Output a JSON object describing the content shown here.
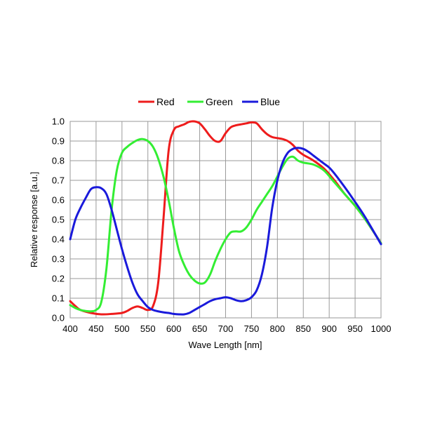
{
  "chart_data": {
    "type": "line",
    "title": "",
    "xlabel": "Wave Length [nm]",
    "ylabel": "Relative response [a.u.]",
    "xlim": [
      400,
      1000
    ],
    "ylim": [
      0,
      1.0
    ],
    "x_ticks": [
      400,
      450,
      500,
      550,
      600,
      650,
      700,
      750,
      800,
      850,
      900,
      950,
      1000
    ],
    "y_ticks": [
      0.0,
      0.1,
      0.2,
      0.3,
      0.4,
      0.5,
      0.6,
      0.7,
      0.8,
      0.9,
      1.0
    ],
    "x_tick_labels": [
      "400",
      "450",
      "500",
      "550",
      "600",
      "650",
      "700",
      "750",
      "800",
      "850",
      "900",
      "950",
      "1000"
    ],
    "y_tick_labels": [
      "0.0",
      "0.1",
      "0.2",
      "0.3",
      "0.4",
      "0.5",
      "0.6",
      "0.7",
      "0.8",
      "0.9",
      "1.0"
    ],
    "grid": true,
    "legend_position": "top",
    "series": [
      {
        "name": "Red",
        "color": "#ee1c1c",
        "points": [
          [
            400,
            0.085
          ],
          [
            410,
            0.06
          ],
          [
            420,
            0.04
          ],
          [
            440,
            0.025
          ],
          [
            460,
            0.018
          ],
          [
            480,
            0.02
          ],
          [
            500,
            0.025
          ],
          [
            510,
            0.035
          ],
          [
            520,
            0.05
          ],
          [
            530,
            0.058
          ],
          [
            540,
            0.05
          ],
          [
            550,
            0.04
          ],
          [
            560,
            0.06
          ],
          [
            570,
            0.18
          ],
          [
            580,
            0.5
          ],
          [
            590,
            0.85
          ],
          [
            600,
            0.955
          ],
          [
            610,
            0.975
          ],
          [
            620,
            0.985
          ],
          [
            630,
            0.998
          ],
          [
            640,
            1.0
          ],
          [
            650,
            0.99
          ],
          [
            660,
            0.96
          ],
          [
            670,
            0.925
          ],
          [
            680,
            0.9
          ],
          [
            690,
            0.9
          ],
          [
            700,
            0.94
          ],
          [
            710,
            0.97
          ],
          [
            720,
            0.98
          ],
          [
            730,
            0.985
          ],
          [
            740,
            0.99
          ],
          [
            750,
            0.995
          ],
          [
            760,
            0.99
          ],
          [
            770,
            0.96
          ],
          [
            780,
            0.935
          ],
          [
            790,
            0.92
          ],
          [
            800,
            0.915
          ],
          [
            810,
            0.91
          ],
          [
            820,
            0.9
          ],
          [
            830,
            0.88
          ],
          [
            840,
            0.85
          ],
          [
            850,
            0.83
          ],
          [
            870,
            0.8
          ],
          [
            890,
            0.76
          ],
          [
            910,
            0.7
          ],
          [
            930,
            0.63
          ],
          [
            950,
            0.57
          ],
          [
            970,
            0.5
          ],
          [
            1000,
            0.38
          ]
        ]
      },
      {
        "name": "Green",
        "color": "#33ee33",
        "points": [
          [
            400,
            0.065
          ],
          [
            410,
            0.05
          ],
          [
            420,
            0.04
          ],
          [
            430,
            0.035
          ],
          [
            440,
            0.033
          ],
          [
            450,
            0.04
          ],
          [
            460,
            0.08
          ],
          [
            470,
            0.25
          ],
          [
            480,
            0.55
          ],
          [
            490,
            0.75
          ],
          [
            500,
            0.84
          ],
          [
            510,
            0.87
          ],
          [
            520,
            0.89
          ],
          [
            530,
            0.905
          ],
          [
            540,
            0.91
          ],
          [
            550,
            0.9
          ],
          [
            560,
            0.87
          ],
          [
            570,
            0.81
          ],
          [
            580,
            0.72
          ],
          [
            590,
            0.6
          ],
          [
            600,
            0.46
          ],
          [
            610,
            0.34
          ],
          [
            620,
            0.27
          ],
          [
            630,
            0.22
          ],
          [
            640,
            0.19
          ],
          [
            650,
            0.175
          ],
          [
            660,
            0.18
          ],
          [
            670,
            0.22
          ],
          [
            680,
            0.29
          ],
          [
            690,
            0.35
          ],
          [
            700,
            0.4
          ],
          [
            710,
            0.435
          ],
          [
            720,
            0.44
          ],
          [
            730,
            0.44
          ],
          [
            740,
            0.46
          ],
          [
            750,
            0.5
          ],
          [
            760,
            0.55
          ],
          [
            770,
            0.59
          ],
          [
            780,
            0.63
          ],
          [
            790,
            0.67
          ],
          [
            800,
            0.72
          ],
          [
            810,
            0.77
          ],
          [
            820,
            0.81
          ],
          [
            830,
            0.82
          ],
          [
            840,
            0.8
          ],
          [
            850,
            0.79
          ],
          [
            870,
            0.78
          ],
          [
            890,
            0.75
          ],
          [
            910,
            0.69
          ],
          [
            930,
            0.63
          ],
          [
            950,
            0.57
          ],
          [
            970,
            0.5
          ],
          [
            1000,
            0.38
          ]
        ]
      },
      {
        "name": "Blue",
        "color": "#1a1adb",
        "points": [
          [
            400,
            0.4
          ],
          [
            410,
            0.5
          ],
          [
            420,
            0.56
          ],
          [
            430,
            0.61
          ],
          [
            440,
            0.655
          ],
          [
            450,
            0.665
          ],
          [
            460,
            0.66
          ],
          [
            470,
            0.63
          ],
          [
            480,
            0.55
          ],
          [
            490,
            0.45
          ],
          [
            500,
            0.35
          ],
          [
            510,
            0.26
          ],
          [
            520,
            0.18
          ],
          [
            530,
            0.12
          ],
          [
            540,
            0.085
          ],
          [
            550,
            0.055
          ],
          [
            560,
            0.04
          ],
          [
            570,
            0.033
          ],
          [
            580,
            0.028
          ],
          [
            590,
            0.025
          ],
          [
            600,
            0.02
          ],
          [
            610,
            0.018
          ],
          [
            620,
            0.018
          ],
          [
            630,
            0.025
          ],
          [
            640,
            0.04
          ],
          [
            650,
            0.055
          ],
          [
            660,
            0.07
          ],
          [
            670,
            0.085
          ],
          [
            680,
            0.095
          ],
          [
            690,
            0.1
          ],
          [
            700,
            0.105
          ],
          [
            710,
            0.1
          ],
          [
            720,
            0.09
          ],
          [
            730,
            0.085
          ],
          [
            740,
            0.09
          ],
          [
            750,
            0.105
          ],
          [
            760,
            0.14
          ],
          [
            770,
            0.22
          ],
          [
            780,
            0.36
          ],
          [
            790,
            0.56
          ],
          [
            800,
            0.7
          ],
          [
            810,
            0.79
          ],
          [
            820,
            0.84
          ],
          [
            830,
            0.86
          ],
          [
            840,
            0.865
          ],
          [
            850,
            0.86
          ],
          [
            860,
            0.845
          ],
          [
            870,
            0.825
          ],
          [
            880,
            0.805
          ],
          [
            890,
            0.785
          ],
          [
            900,
            0.765
          ],
          [
            910,
            0.735
          ],
          [
            930,
            0.665
          ],
          [
            950,
            0.59
          ],
          [
            970,
            0.51
          ],
          [
            1000,
            0.375
          ]
        ]
      }
    ]
  }
}
